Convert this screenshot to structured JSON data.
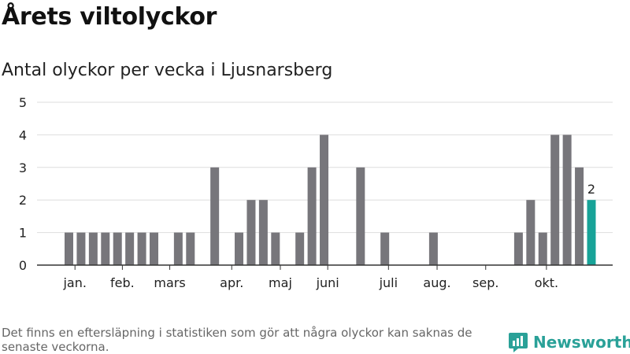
{
  "title": "Årets viltolyckor",
  "subtitle": "Antal olyckor per vecka i Ljusnarsberg",
  "footnote": "Det finns en eftersläpning i statistiken som gör att några olyckor kan saknas de senaste veckorna.",
  "brand": {
    "name": "Newsworthy",
    "icon": "newsworthy-logo-icon"
  },
  "colors": {
    "bar": "#77767b",
    "highlight": "#17a398",
    "grid": "#dddddd",
    "axis": "#333333",
    "text": "#222222",
    "brand": "#2aa198"
  },
  "chart_data": {
    "type": "bar",
    "x": [
      1,
      2,
      3,
      4,
      5,
      6,
      7,
      8,
      9,
      10,
      11,
      12,
      13,
      14,
      15,
      16,
      17,
      18,
      19,
      20,
      21,
      22,
      23,
      24,
      25,
      26,
      27,
      28,
      29,
      30,
      31,
      32,
      33,
      34,
      35,
      36,
      37,
      38,
      39,
      40,
      41,
      42,
      43
    ],
    "values": [
      1,
      1,
      1,
      1,
      1,
      1,
      1,
      1,
      0,
      1,
      1,
      0,
      3,
      0,
      1,
      2,
      2,
      1,
      0,
      1,
      3,
      4,
      0,
      0,
      3,
      0,
      1,
      0,
      0,
      0,
      1,
      0,
      0,
      0,
      0,
      0,
      0,
      1,
      2,
      1,
      4,
      4,
      3
    ],
    "highlight": {
      "x": 44,
      "value": 2,
      "label": "2"
    },
    "ylim": [
      0,
      5
    ],
    "yticks": [
      0,
      1,
      2,
      3,
      4,
      5
    ],
    "month_labels": [
      {
        "label": "jan.",
        "week": 1.5
      },
      {
        "label": "feb.",
        "week": 5.4
      },
      {
        "label": "mars",
        "week": 9.3
      },
      {
        "label": "apr.",
        "week": 14.4
      },
      {
        "label": "maj",
        "week": 18.4
      },
      {
        "label": "juni",
        "week": 22.3
      },
      {
        "label": "juli",
        "week": 27.3
      },
      {
        "label": "aug.",
        "week": 31.3
      },
      {
        "label": "sep.",
        "week": 35.3
      },
      {
        "label": "okt.",
        "week": 40.3
      }
    ],
    "grid": true,
    "legend": "none"
  }
}
